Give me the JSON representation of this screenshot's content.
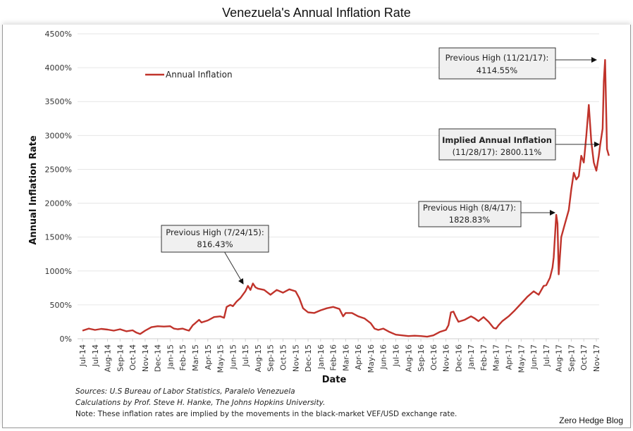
{
  "page_title": "Venezuela's Annual Inflation Rate",
  "credit": "Zero Hedge Blog",
  "footnotes": [
    "Sources: U.S Bureau of Labor Statistics, Paralelo Venezuela",
    "Calculations by Prof. Steve H. Hanke, The Johns Hopkins University.",
    "Note: These inflation rates are implied by the movements in the black-market VEF/USD exchange rate."
  ],
  "chart_data": {
    "type": "line",
    "title": "Venezuela's Annual Inflation Rate",
    "xlabel": "Date",
    "ylabel": "Annual Inflation Rate",
    "ylim": [
      0,
      4500
    ],
    "yticks": [
      0,
      500,
      1000,
      1500,
      2000,
      2500,
      3000,
      3500,
      4000,
      4500
    ],
    "ytick_labels": [
      "0%",
      "500%",
      "1000%",
      "1500%",
      "2000%",
      "2500%",
      "3000%",
      "3500%",
      "4000%",
      "4500%"
    ],
    "grid": true,
    "legend": {
      "position": "top-left",
      "entries": [
        "Annual Inflation"
      ]
    },
    "categories": [
      "Jul-14",
      "Jul-14",
      "Aug-14",
      "Sep-14",
      "Oct-14",
      "Nov-14",
      "Dec-14",
      "Jan-15",
      "Feb-15",
      "Mar-15",
      "Apr-15",
      "May-15",
      "Jun-15",
      "Jul-15",
      "Aug-15",
      "Sep-15",
      "Oct-15",
      "Nov-15",
      "Dec-15",
      "Jan-16",
      "Feb-16",
      "Mar-16",
      "Apr-16",
      "May-16",
      "Jun-16",
      "Jul-16",
      "Aug-16",
      "Sep-16",
      "Oct-16",
      "Nov-16",
      "Dec-16",
      "Jan-17",
      "Feb-17",
      "Mar-17",
      "Apr-17",
      "May-17",
      "Jun-17",
      "Jul-17",
      "Aug-17",
      "Sep-17",
      "Oct-17",
      "Nov-17"
    ],
    "series": [
      {
        "name": "Annual Inflation",
        "color": "#c0332b",
        "x_tick_index": [
          0,
          0.5,
          1,
          1.5,
          2,
          2.5,
          3,
          3.5,
          4,
          4.3,
          4.6,
          5,
          5.5,
          6,
          6.5,
          7,
          7.3,
          7.6,
          8,
          8.3,
          8.5,
          8.8,
          9,
          9.3,
          9.5,
          10,
          10.5,
          11,
          11.3,
          11.5,
          11.8,
          12,
          12.3,
          12.6,
          13,
          13.2,
          13.4,
          13.6,
          13.8,
          14,
          14.5,
          15,
          15.5,
          16,
          16.5,
          17,
          17.3,
          17.6,
          18,
          18.5,
          19,
          19.5,
          20,
          20.5,
          20.8,
          21,
          21.5,
          22,
          22.5,
          23,
          23.3,
          23.6,
          24,
          24.5,
          25,
          25.5,
          26,
          26.5,
          27,
          27.5,
          28,
          28.5,
          29,
          29.2,
          29.4,
          29.6,
          29.8,
          30,
          30.5,
          31,
          31.3,
          31.6,
          32,
          32.4,
          32.8,
          33,
          33.2,
          33.5,
          34,
          34.5,
          35,
          35.5,
          36,
          36.4,
          36.8,
          37,
          37.3,
          37.5,
          37.6,
          37.8,
          37.9,
          38,
          38.2,
          38.5,
          38.8,
          39,
          39.2,
          39.4,
          39.6,
          39.8,
          40,
          40.2,
          40.4,
          40.6,
          40.8,
          41,
          41.2,
          41.3,
          41.5,
          41.6,
          41.7,
          41.85,
          42
        ],
        "values": [
          120,
          150,
          130,
          145,
          135,
          120,
          140,
          110,
          125,
          90,
          70,
          120,
          170,
          185,
          180,
          185,
          150,
          140,
          150,
          130,
          120,
          200,
          230,
          280,
          240,
          270,
          320,
          330,
          310,
          470,
          500,
          480,
          550,
          600,
          700,
          780,
          720,
          816,
          760,
          740,
          720,
          650,
          720,
          680,
          730,
          700,
          600,
          450,
          390,
          380,
          420,
          450,
          470,
          440,
          330,
          380,
          380,
          330,
          300,
          230,
          150,
          130,
          150,
          100,
          60,
          50,
          40,
          45,
          40,
          30,
          50,
          100,
          130,
          200,
          390,
          400,
          320,
          250,
          280,
          330,
          300,
          260,
          320,
          250,
          160,
          150,
          200,
          260,
          330,
          420,
          520,
          620,
          700,
          650,
          780,
          790,
          900,
          1050,
          1200,
          1828,
          1700,
          950,
          1500,
          1700,
          1900,
          2200,
          2450,
          2350,
          2400,
          2700,
          2600,
          3000,
          3450,
          2900,
          2600,
          2480,
          2700,
          2850,
          3100,
          3800,
          4114,
          2800,
          2700
        ]
      }
    ],
    "annotations": [
      {
        "label": "Previous High (7/24/15):",
        "value_label": "816.43%",
        "date": "7/24/15",
        "value": 816.43
      },
      {
        "label": "Previous High (8/4/17):",
        "value_label": "1828.83%",
        "date": "8/4/17",
        "value": 1828.83
      },
      {
        "label": "Implied Annual Inflation",
        "value_label": "(11/28/17): 2800.11%",
        "date": "11/28/17",
        "value": 2800.11,
        "bold": true
      },
      {
        "label": "Previous High (11/21/17):",
        "value_label": "4114.55%",
        "date": "11/21/17",
        "value": 4114.55
      }
    ]
  }
}
